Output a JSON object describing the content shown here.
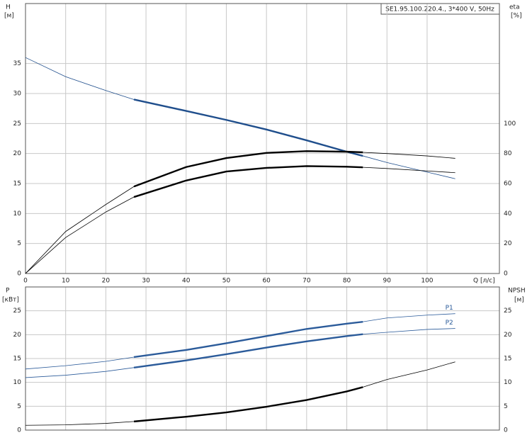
{
  "chart_data": [
    {
      "type": "line",
      "y_label": "H",
      "y_unit": "[м]",
      "y2_label": "eta",
      "y2_unit": "[%]",
      "x_label": "Q [л/с]",
      "legend_text": "SE1.95.100.220.4., 3*400 V, 50Hz",
      "x": [
        0,
        10,
        20,
        27,
        40,
        50,
        60,
        70,
        80,
        84,
        90,
        100,
        107
      ],
      "xlim": [
        0,
        118
      ],
      "xticks": [
        0,
        10,
        20,
        30,
        40,
        50,
        60,
        70,
        80,
        90,
        100
      ],
      "ylim": [
        0,
        45
      ],
      "yticks": [
        0,
        5,
        10,
        15,
        20,
        25,
        30,
        35
      ],
      "y2lim": [
        0,
        180
      ],
      "y2ticks": [
        0,
        20,
        40,
        60,
        80,
        100
      ],
      "grid": true,
      "highlight_xrange": [
        27,
        84
      ],
      "series": [
        {
          "color": "#1f4e8c",
          "values": [
            36,
            32.8,
            30.5,
            29,
            27.1,
            25.6,
            24,
            22.2,
            20.3,
            19.6,
            18.5,
            16.9,
            15.8
          ]
        },
        {
          "color": "#000000",
          "axis": "y2",
          "values": [
            0,
            28,
            46,
            58,
            71,
            77,
            80.4,
            81.6,
            81.2,
            80.8,
            80,
            78.4,
            76.8
          ]
        },
        {
          "color": "#000000",
          "axis": "y2",
          "values": [
            0,
            24,
            41,
            51,
            62,
            68,
            70.4,
            71.6,
            71.2,
            70.8,
            70,
            68.4,
            67.2
          ]
        }
      ]
    },
    {
      "type": "line",
      "y_label": "P",
      "y_unit": "[кВт]",
      "y2_label": "NPSH",
      "y2_unit": "[м]",
      "x": [
        0,
        10,
        20,
        27,
        40,
        50,
        60,
        70,
        80,
        84,
        90,
        100,
        107
      ],
      "xlim": [
        0,
        118
      ],
      "ylim": [
        0,
        30
      ],
      "yticks": [
        0,
        5,
        10,
        15,
        20,
        25
      ],
      "y2lim": [
        0,
        30
      ],
      "y2ticks": [
        0,
        5,
        10,
        15,
        20,
        25
      ],
      "grid": true,
      "highlight_xrange": [
        27,
        84
      ],
      "series": [
        {
          "name": "P1",
          "color": "#2b5b9a",
          "values": [
            12.8,
            13.5,
            14.4,
            15.3,
            16.8,
            18.2,
            19.7,
            21.2,
            22.3,
            22.7,
            23.5,
            24.1,
            24.4
          ]
        },
        {
          "name": "P2",
          "color": "#2b5b9a",
          "values": [
            11,
            11.5,
            12.3,
            13.1,
            14.6,
            15.9,
            17.3,
            18.6,
            19.7,
            20.1,
            20.5,
            21.1,
            21.3
          ]
        },
        {
          "color": "#000000",
          "axis": "y2",
          "values": [
            1,
            1.1,
            1.4,
            1.8,
            2.8,
            3.7,
            4.9,
            6.3,
            8.1,
            9,
            10.6,
            12.6,
            14.3
          ]
        }
      ]
    }
  ]
}
